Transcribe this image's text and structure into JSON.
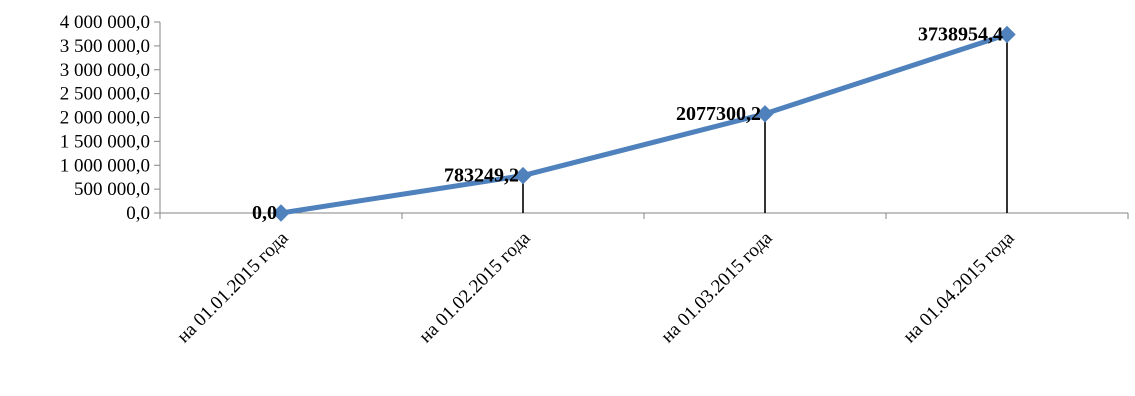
{
  "chart_data": {
    "type": "line",
    "categories": [
      "на 01.01.2015 года",
      "на 01.02.2015 года",
      "на 01.03.2015 года",
      "на 01.04.2015 года"
    ],
    "series": [
      {
        "values": [
          0.0,
          783249.2,
          2077300.2,
          3738954.4
        ]
      }
    ],
    "data_labels": [
      "0,0",
      "783249,2",
      "2077300,2",
      "3738954,4"
    ],
    "y_ticks": [
      0,
      500000,
      1000000,
      1500000,
      2000000,
      2500000,
      3000000,
      3500000,
      4000000
    ],
    "y_tick_labels": [
      "0,0",
      "500 000,0",
      "1 000 000,0",
      "1 500 000,0",
      "2 000 000,0",
      "2 500 000,0",
      "3 000 000,0",
      "3 500 000,0",
      "4 000 000,0"
    ],
    "ylim": [
      0,
      4000000
    ],
    "title": "",
    "xlabel": "",
    "ylabel": "",
    "grid": false,
    "drop_lines": true,
    "marker": "diamond",
    "line_color": "#4f81bd"
  }
}
